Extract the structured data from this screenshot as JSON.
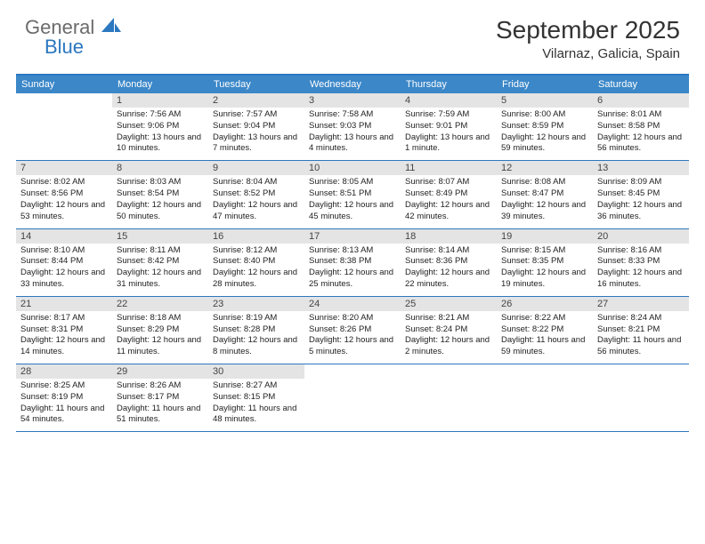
{
  "logo": {
    "word1": "General",
    "word2": "Blue"
  },
  "header": {
    "month_title": "September 2025",
    "location": "Vilarnaz, Galicia, Spain"
  },
  "styling": {
    "accent_color": "#3b87c8",
    "border_color": "#2b77c0",
    "daystrip_bg": "#e4e4e4",
    "title_fontsize": 28,
    "location_fontsize": 15,
    "weekday_fontsize": 11,
    "body_fontsize": 9.5,
    "logo_general_color": "#6b6b6b",
    "logo_blue_color": "#2b77c0"
  },
  "weekdays": [
    "Sunday",
    "Monday",
    "Tuesday",
    "Wednesday",
    "Thursday",
    "Friday",
    "Saturday"
  ],
  "weeks": [
    [
      {
        "n": "",
        "sr": "",
        "ss": "",
        "dl": ""
      },
      {
        "n": "1",
        "sr": "Sunrise: 7:56 AM",
        "ss": "Sunset: 9:06 PM",
        "dl": "Daylight: 13 hours and 10 minutes."
      },
      {
        "n": "2",
        "sr": "Sunrise: 7:57 AM",
        "ss": "Sunset: 9:04 PM",
        "dl": "Daylight: 13 hours and 7 minutes."
      },
      {
        "n": "3",
        "sr": "Sunrise: 7:58 AM",
        "ss": "Sunset: 9:03 PM",
        "dl": "Daylight: 13 hours and 4 minutes."
      },
      {
        "n": "4",
        "sr": "Sunrise: 7:59 AM",
        "ss": "Sunset: 9:01 PM",
        "dl": "Daylight: 13 hours and 1 minute."
      },
      {
        "n": "5",
        "sr": "Sunrise: 8:00 AM",
        "ss": "Sunset: 8:59 PM",
        "dl": "Daylight: 12 hours and 59 minutes."
      },
      {
        "n": "6",
        "sr": "Sunrise: 8:01 AM",
        "ss": "Sunset: 8:58 PM",
        "dl": "Daylight: 12 hours and 56 minutes."
      }
    ],
    [
      {
        "n": "7",
        "sr": "Sunrise: 8:02 AM",
        "ss": "Sunset: 8:56 PM",
        "dl": "Daylight: 12 hours and 53 minutes."
      },
      {
        "n": "8",
        "sr": "Sunrise: 8:03 AM",
        "ss": "Sunset: 8:54 PM",
        "dl": "Daylight: 12 hours and 50 minutes."
      },
      {
        "n": "9",
        "sr": "Sunrise: 8:04 AM",
        "ss": "Sunset: 8:52 PM",
        "dl": "Daylight: 12 hours and 47 minutes."
      },
      {
        "n": "10",
        "sr": "Sunrise: 8:05 AM",
        "ss": "Sunset: 8:51 PM",
        "dl": "Daylight: 12 hours and 45 minutes."
      },
      {
        "n": "11",
        "sr": "Sunrise: 8:07 AM",
        "ss": "Sunset: 8:49 PM",
        "dl": "Daylight: 12 hours and 42 minutes."
      },
      {
        "n": "12",
        "sr": "Sunrise: 8:08 AM",
        "ss": "Sunset: 8:47 PM",
        "dl": "Daylight: 12 hours and 39 minutes."
      },
      {
        "n": "13",
        "sr": "Sunrise: 8:09 AM",
        "ss": "Sunset: 8:45 PM",
        "dl": "Daylight: 12 hours and 36 minutes."
      }
    ],
    [
      {
        "n": "14",
        "sr": "Sunrise: 8:10 AM",
        "ss": "Sunset: 8:44 PM",
        "dl": "Daylight: 12 hours and 33 minutes."
      },
      {
        "n": "15",
        "sr": "Sunrise: 8:11 AM",
        "ss": "Sunset: 8:42 PM",
        "dl": "Daylight: 12 hours and 31 minutes."
      },
      {
        "n": "16",
        "sr": "Sunrise: 8:12 AM",
        "ss": "Sunset: 8:40 PM",
        "dl": "Daylight: 12 hours and 28 minutes."
      },
      {
        "n": "17",
        "sr": "Sunrise: 8:13 AM",
        "ss": "Sunset: 8:38 PM",
        "dl": "Daylight: 12 hours and 25 minutes."
      },
      {
        "n": "18",
        "sr": "Sunrise: 8:14 AM",
        "ss": "Sunset: 8:36 PM",
        "dl": "Daylight: 12 hours and 22 minutes."
      },
      {
        "n": "19",
        "sr": "Sunrise: 8:15 AM",
        "ss": "Sunset: 8:35 PM",
        "dl": "Daylight: 12 hours and 19 minutes."
      },
      {
        "n": "20",
        "sr": "Sunrise: 8:16 AM",
        "ss": "Sunset: 8:33 PM",
        "dl": "Daylight: 12 hours and 16 minutes."
      }
    ],
    [
      {
        "n": "21",
        "sr": "Sunrise: 8:17 AM",
        "ss": "Sunset: 8:31 PM",
        "dl": "Daylight: 12 hours and 14 minutes."
      },
      {
        "n": "22",
        "sr": "Sunrise: 8:18 AM",
        "ss": "Sunset: 8:29 PM",
        "dl": "Daylight: 12 hours and 11 minutes."
      },
      {
        "n": "23",
        "sr": "Sunrise: 8:19 AM",
        "ss": "Sunset: 8:28 PM",
        "dl": "Daylight: 12 hours and 8 minutes."
      },
      {
        "n": "24",
        "sr": "Sunrise: 8:20 AM",
        "ss": "Sunset: 8:26 PM",
        "dl": "Daylight: 12 hours and 5 minutes."
      },
      {
        "n": "25",
        "sr": "Sunrise: 8:21 AM",
        "ss": "Sunset: 8:24 PM",
        "dl": "Daylight: 12 hours and 2 minutes."
      },
      {
        "n": "26",
        "sr": "Sunrise: 8:22 AM",
        "ss": "Sunset: 8:22 PM",
        "dl": "Daylight: 11 hours and 59 minutes."
      },
      {
        "n": "27",
        "sr": "Sunrise: 8:24 AM",
        "ss": "Sunset: 8:21 PM",
        "dl": "Daylight: 11 hours and 56 minutes."
      }
    ],
    [
      {
        "n": "28",
        "sr": "Sunrise: 8:25 AM",
        "ss": "Sunset: 8:19 PM",
        "dl": "Daylight: 11 hours and 54 minutes."
      },
      {
        "n": "29",
        "sr": "Sunrise: 8:26 AM",
        "ss": "Sunset: 8:17 PM",
        "dl": "Daylight: 11 hours and 51 minutes."
      },
      {
        "n": "30",
        "sr": "Sunrise: 8:27 AM",
        "ss": "Sunset: 8:15 PM",
        "dl": "Daylight: 11 hours and 48 minutes."
      },
      {
        "n": "",
        "sr": "",
        "ss": "",
        "dl": ""
      },
      {
        "n": "",
        "sr": "",
        "ss": "",
        "dl": ""
      },
      {
        "n": "",
        "sr": "",
        "ss": "",
        "dl": ""
      },
      {
        "n": "",
        "sr": "",
        "ss": "",
        "dl": ""
      }
    ]
  ]
}
